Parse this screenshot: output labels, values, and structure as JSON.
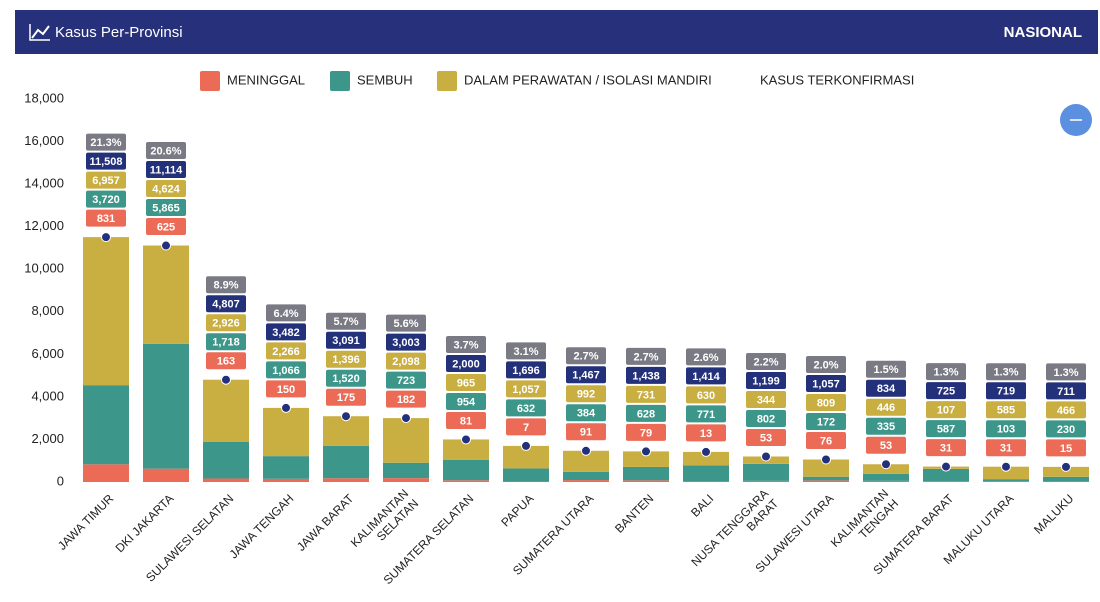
{
  "header": {
    "title": "Kasus Per-Provinsi",
    "scope": "NASIONAL"
  },
  "chart_data": {
    "type": "bar",
    "categories": [
      "JAWA TIMUR",
      "DKI JAKARTA",
      "SULAWESI SELATAN",
      "JAWA TENGAH",
      "JAWA BARAT",
      "KALIMANTAN\nSELATAN",
      "SUMATERA SELATAN",
      "PAPUA",
      "SUMATERA UTARA",
      "BANTEN",
      "BALI",
      "NUSA TENGGARA\nBARAT",
      "SULAWESI UTARA",
      "KALIMANTAN\nTENGAH",
      "SUMATERA BARAT",
      "MALUKU UTARA",
      "MALUKU"
    ],
    "stacked": true,
    "series": [
      {
        "name": "MENINGGAL",
        "color": "#ec6b56",
        "values": [
          831,
          625,
          163,
          150,
          175,
          182,
          81,
          7,
          91,
          79,
          13,
          53,
          76,
          53,
          31,
          31,
          15
        ],
        "value_labels": [
          "831",
          "625",
          "163",
          "150",
          "175",
          "182",
          "81",
          "7",
          "91",
          "79",
          "13",
          "53",
          "76",
          "53",
          "31",
          "31",
          "15"
        ]
      },
      {
        "name": "SEMBUH",
        "color": "#3d968a",
        "values": [
          3720,
          5865,
          1718,
          1066,
          1520,
          723,
          954,
          632,
          384,
          628,
          771,
          802,
          172,
          335,
          587,
          103,
          230
        ],
        "value_labels": [
          "3,720",
          "5,865",
          "1,718",
          "1,066",
          "1,520",
          "723",
          "954",
          "632",
          "384",
          "628",
          "771",
          "802",
          "172",
          "335",
          "587",
          "103",
          "230"
        ]
      },
      {
        "name": "DALAM PERAWATAN / ISOLASI MANDIRI",
        "color": "#c9ae41",
        "values": [
          6957,
          4624,
          2926,
          2266,
          1396,
          2098,
          965,
          1057,
          992,
          731,
          630,
          344,
          809,
          446,
          107,
          585,
          466
        ],
        "value_labels": [
          "6,957",
          "4,624",
          "2,926",
          "2,266",
          "1,396",
          "2,098",
          "965",
          "1,057",
          "992",
          "731",
          "630",
          "344",
          "809",
          "446",
          "107",
          "585",
          "466"
        ]
      }
    ],
    "total": {
      "name": "KASUS TERKONFIRMASI",
      "color": "#23307a",
      "values": [
        11508,
        11114,
        4807,
        3482,
        3091,
        3003,
        2000,
        1696,
        1467,
        1438,
        1414,
        1199,
        1057,
        834,
        725,
        719,
        711
      ],
      "value_labels": [
        "11,508",
        "11,114",
        "4,807",
        "3,482",
        "3,091",
        "3,003",
        "2,000",
        "1,696",
        "1,467",
        "1,438",
        "1,414",
        "1,199",
        "1,057",
        "834",
        "725",
        "719",
        "711"
      ]
    },
    "share": {
      "color": "#7a7a85",
      "values": [
        21.3,
        20.6,
        8.9,
        6.4,
        5.7,
        5.6,
        3.7,
        3.1,
        2.7,
        2.7,
        2.6,
        2.2,
        2.0,
        1.5,
        1.3,
        1.3,
        1.3
      ],
      "value_labels": [
        "21.3%",
        "20.6%",
        "8.9%",
        "6.4%",
        "5.7%",
        "5.6%",
        "3.7%",
        "3.1%",
        "2.7%",
        "2.7%",
        "2.6%",
        "2.2%",
        "2.0%",
        "1.5%",
        "1.3%",
        "1.3%",
        "1.3%"
      ]
    },
    "ylim": [
      0,
      18000
    ],
    "yticks": [
      {
        "value": 0,
        "label": "0"
      },
      {
        "value": 2000,
        "label": "2,000"
      },
      {
        "value": 4000,
        "label": "4,000"
      },
      {
        "value": 6000,
        "label": "6,000"
      },
      {
        "value": 8000,
        "label": "8,000"
      },
      {
        "value": 10000,
        "label": "10,000"
      },
      {
        "value": 12000,
        "label": "12,000"
      },
      {
        "value": 14000,
        "label": "14,000"
      },
      {
        "value": 16000,
        "label": "16,000"
      },
      {
        "value": 18000,
        "label": "18,000"
      }
    ],
    "grid": false
  }
}
